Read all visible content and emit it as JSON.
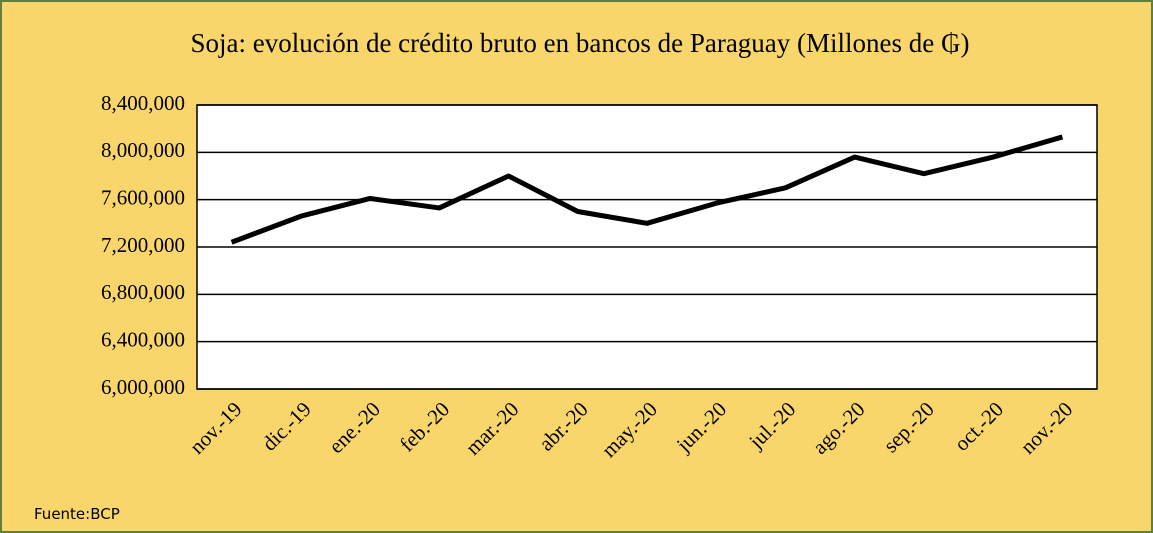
{
  "chart_data": {
    "type": "line",
    "title": "Soja: evolución de crédito bruto en bancos de Paraguay (Millones de ₲)",
    "categories": [
      "nov.-19",
      "dic.-19",
      "ene.-20",
      "feb.-20",
      "mar.-20",
      "abr.-20",
      "may.-20",
      "jun.-20",
      "jul.-20",
      "ago.-20",
      "sep.-20",
      "oct.-20",
      "nov.-20"
    ],
    "series": [
      {
        "name": "Soja",
        "color": "#000000",
        "values": [
          7240000,
          7460000,
          7610000,
          7530000,
          7800000,
          7500000,
          7400000,
          7570000,
          7700000,
          7960000,
          7820000,
          7960000,
          8130000
        ]
      }
    ],
    "ylim": [
      6000000,
      8400000
    ],
    "yticks": [
      {
        "value": 6000000,
        "label": "6,000,000"
      },
      {
        "value": 6400000,
        "label": "6,400,000"
      },
      {
        "value": 6800000,
        "label": "6,800,000"
      },
      {
        "value": 7200000,
        "label": "7,200,000"
      },
      {
        "value": 7600000,
        "label": "7,600,000"
      },
      {
        "value": 8000000,
        "label": "8,000,000"
      },
      {
        "value": 8400000,
        "label": "8,400,000"
      }
    ],
    "grid": true,
    "source": "Fuente:BCP"
  }
}
